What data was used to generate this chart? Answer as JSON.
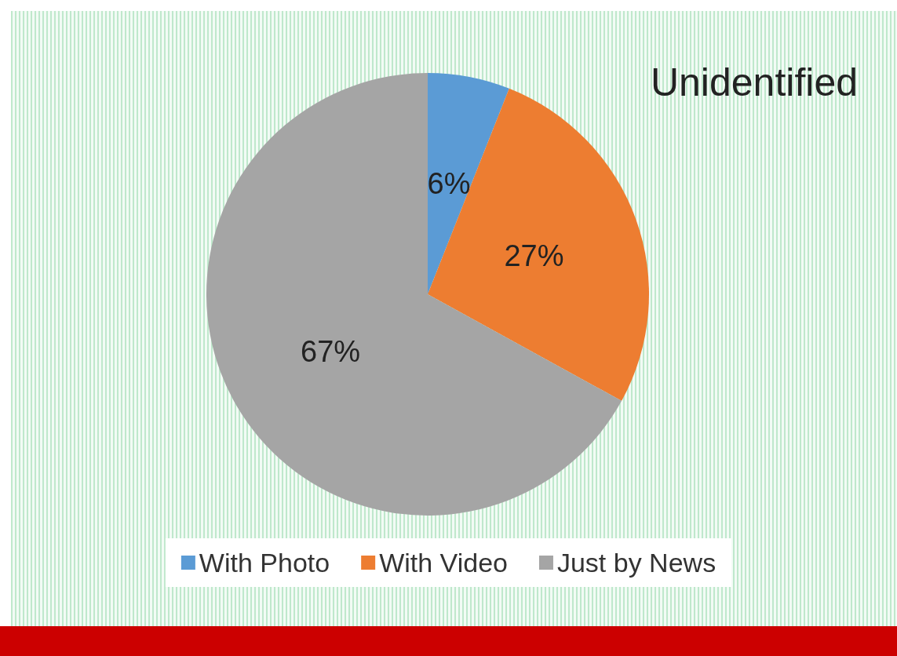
{
  "chart_data": {
    "type": "pie",
    "title": "Unidentified",
    "categories": [
      "With Photo",
      "With Video",
      "Just by News"
    ],
    "values": [
      6,
      27,
      67
    ],
    "value_labels": [
      "6%",
      "27%",
      "67%"
    ],
    "colors": [
      "#5b9bd5",
      "#ed7d31",
      "#a5a5a5"
    ],
    "legend": "bottom"
  }
}
